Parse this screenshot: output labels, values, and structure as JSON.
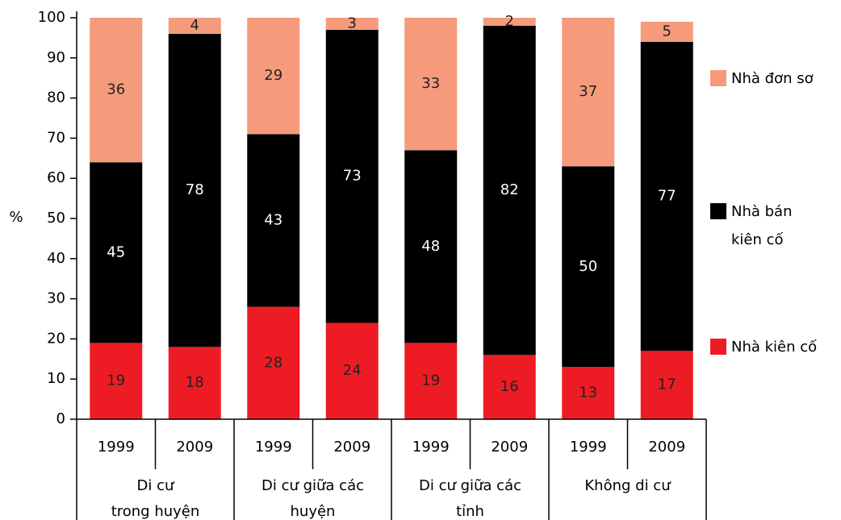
{
  "chart_data": {
    "type": "bar",
    "stacked": true,
    "y_label": "%",
    "categories": [
      "1999",
      "2009",
      "1999",
      "2009",
      "1999",
      "2009",
      "1999",
      "2009"
    ],
    "groups": [
      "Di cư\ntrong huyện",
      "Di cư giữa các\nhuyện",
      "Di cư giữa các\ntỉnh",
      "Không di cư"
    ],
    "series": [
      {
        "name": "Nhà kiên cố",
        "color": "#ed1c24",
        "values": [
          19,
          18,
          28,
          24,
          19,
          16,
          13,
          17
        ]
      },
      {
        "name": "Nhà bán\nkiên cố",
        "color": "#000000",
        "values": [
          45,
          78,
          43,
          73,
          48,
          82,
          50,
          77
        ]
      },
      {
        "name": "Nhà đơn sơ",
        "color": "#f59b7b",
        "values": [
          36,
          4,
          29,
          3,
          33,
          2,
          37,
          5
        ]
      }
    ],
    "ylim": [
      0,
      100
    ],
    "yticks": [
      0,
      10,
      20,
      30,
      40,
      50,
      60,
      70,
      80,
      90,
      100
    ]
  }
}
